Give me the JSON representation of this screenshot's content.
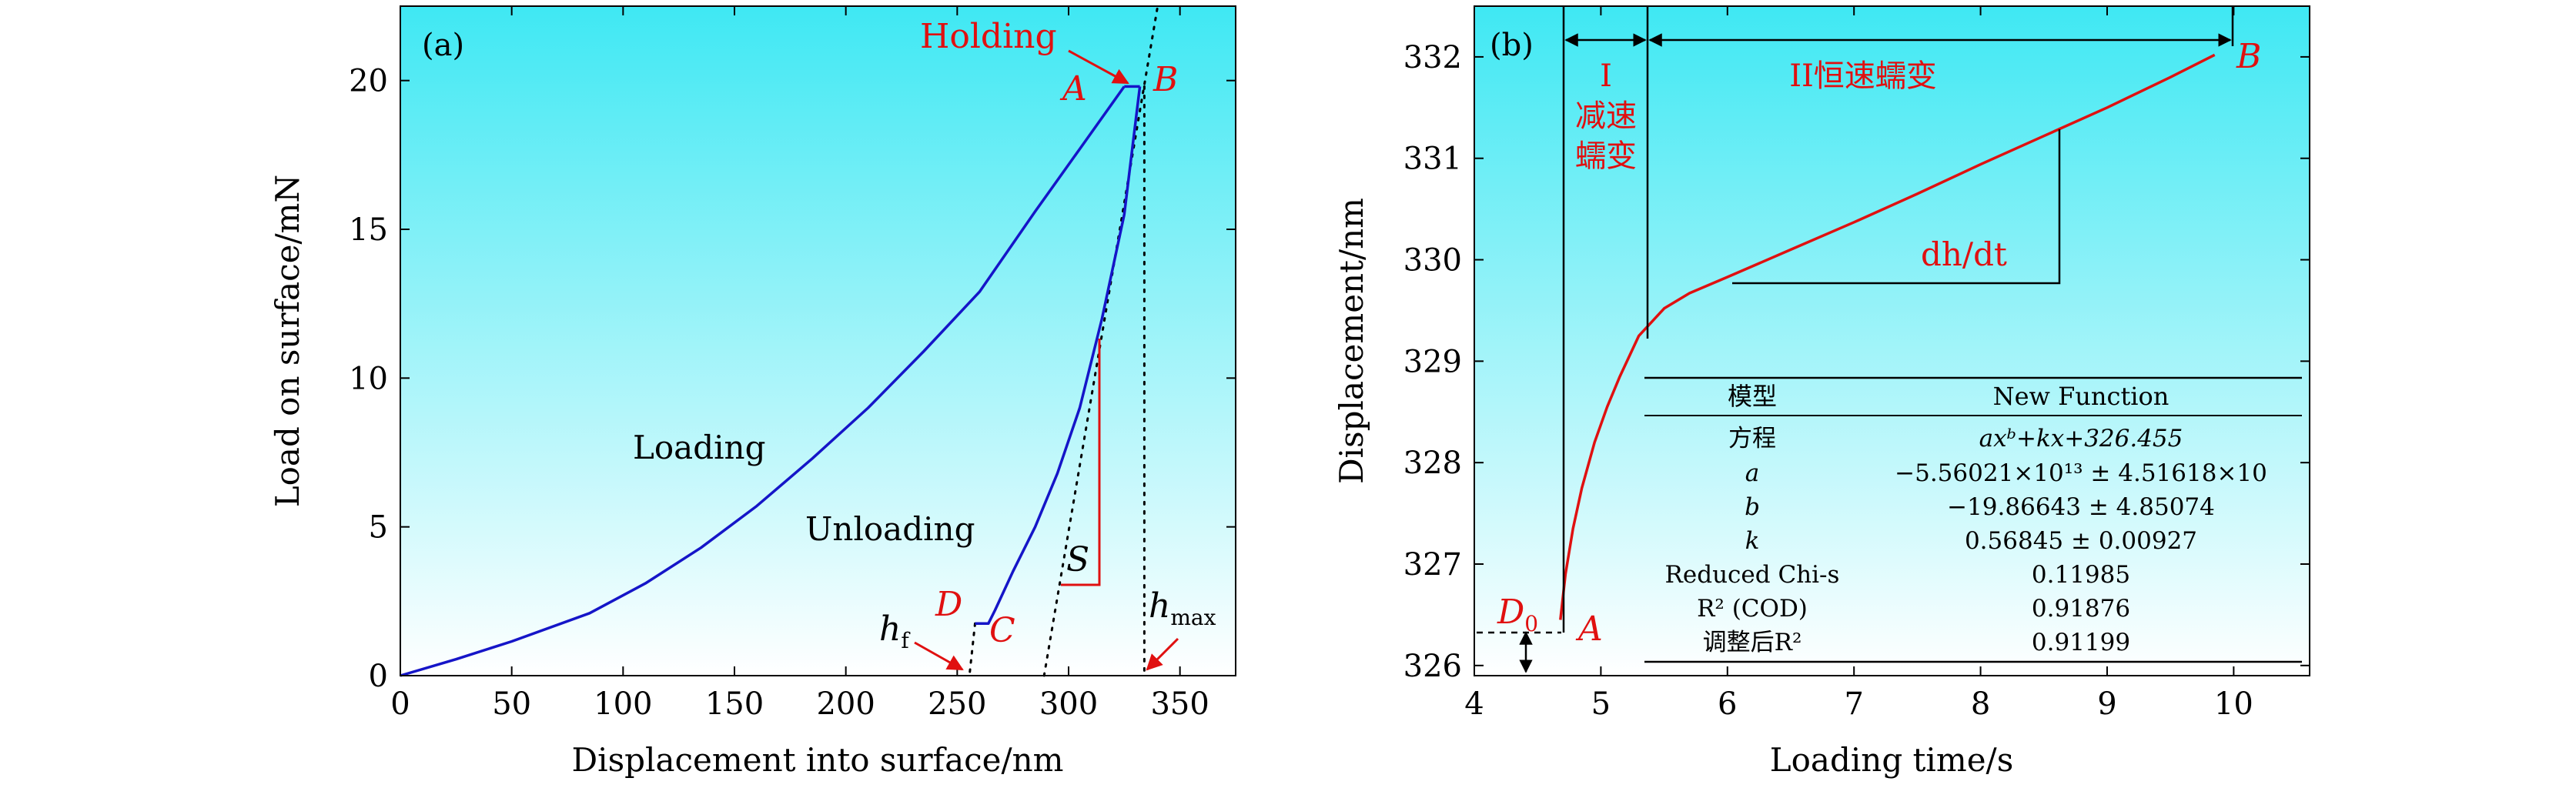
{
  "colors": {
    "gradient_top": "#3fe8f3",
    "gradient_bottom": "#ffffff",
    "loading_curve": "#1515c8",
    "creep_curve": "#e01010",
    "annotation_red": "#e01010",
    "black": "#000000"
  },
  "chart_data": [
    {
      "type": "line",
      "panel_label": "(a)",
      "xlabel": "Displacement into surface/nm",
      "ylabel": "Load on surface/mN",
      "xlim": [
        0,
        375
      ],
      "ylim": [
        0,
        22.5
      ],
      "xticks": [
        0,
        50,
        100,
        150,
        200,
        250,
        300,
        350
      ],
      "yticks": [
        0,
        5,
        10,
        15,
        20
      ],
      "grid": false,
      "series": [
        {
          "name": "Loading",
          "x": [
            0,
            25,
            50,
            85,
            110,
            135,
            160,
            185,
            210,
            235,
            260,
            285,
            305,
            325
          ],
          "y": [
            0,
            0.55,
            1.15,
            2.1,
            3.1,
            4.3,
            5.7,
            7.3,
            9.0,
            10.9,
            12.9,
            15.6,
            17.7,
            19.8
          ]
        },
        {
          "name": "Holding",
          "x": [
            325,
            332
          ],
          "y": [
            19.8,
            19.8
          ]
        },
        {
          "name": "Unloading",
          "x": [
            332,
            325,
            315,
            305,
            295,
            285,
            275,
            267,
            264,
            258
          ],
          "y": [
            19.8,
            15.5,
            12.0,
            9.0,
            6.8,
            5.0,
            3.5,
            2.2,
            1.75,
            1.75
          ]
        }
      ],
      "tangent_lines": [
        {
          "x": [
            289,
            340
          ],
          "y": [
            0,
            22.5
          ]
        },
        {
          "x": [
            258,
            255.5
          ],
          "y": [
            1.75,
            0
          ]
        },
        {
          "x": [
            334,
            334
          ],
          "y": [
            19.8,
            0
          ]
        }
      ],
      "annotations": {
        "holding": "Holding",
        "point_a": "A",
        "point_b": "B",
        "point_c": "C",
        "point_d": "D",
        "loading": "Loading",
        "unloading": "Unloading",
        "stiffness": "S",
        "h_f_base": "h",
        "h_f_sub": "f",
        "h_max_base": "h",
        "h_max_sub": "max"
      }
    },
    {
      "type": "line",
      "panel_label": "(b)",
      "xlabel": "Loading time/s",
      "ylabel": "Displacement/nm",
      "xlim": [
        4,
        10.6
      ],
      "ylim": [
        325.9,
        332.5
      ],
      "xticks": [
        4,
        5,
        6,
        7,
        8,
        9,
        10
      ],
      "yticks": [
        326,
        327,
        328,
        329,
        330,
        331,
        332
      ],
      "grid": false,
      "series": [
        {
          "name": "creep",
          "x": [
            4.68,
            4.72,
            4.78,
            4.85,
            4.95,
            5.05,
            5.15,
            5.3,
            5.5,
            5.7,
            6.0,
            6.5,
            7.0,
            7.5,
            8.0,
            8.5,
            9.0,
            9.5,
            9.85
          ],
          "y": [
            326.45,
            326.9,
            327.35,
            327.75,
            328.2,
            328.55,
            328.85,
            329.25,
            329.52,
            329.67,
            329.83,
            330.1,
            330.37,
            330.65,
            330.94,
            331.22,
            331.5,
            331.8,
            332.02
          ]
        }
      ],
      "annotations": {
        "region_1": "I",
        "region_1_line1": "减速",
        "region_1_line2": "蠕变",
        "region_2": "II恒速蠕变",
        "point_a": "A",
        "point_b": "B",
        "d0_base": "D",
        "d0_sub": "0",
        "slope": "dh/dt"
      },
      "fit_table": {
        "header": [
          "模型",
          "New Function"
        ],
        "rows": [
          [
            "方程",
            "axᵇ+kx+326.455"
          ],
          [
            "a",
            "−5.56021×10¹³ ± 4.51618×10"
          ],
          [
            "b",
            "−19.86643 ± 4.85074"
          ],
          [
            "k",
            "0.56845 ± 0.00927"
          ],
          [
            "Reduced Chi-s",
            "0.11985"
          ],
          [
            "R² (COD)",
            "0.91876"
          ],
          [
            "调整后R²",
            "0.91199"
          ]
        ]
      }
    }
  ]
}
